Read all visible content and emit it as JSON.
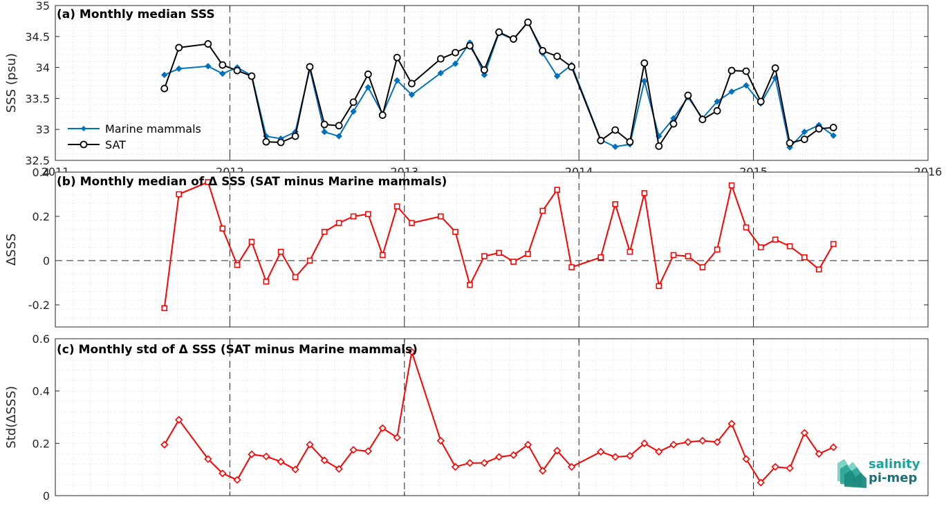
{
  "chart_data": [
    {
      "type": "line",
      "title": "(a) Monthly median SSS",
      "ylabel": "SSS (psu)",
      "xlim": [
        2011,
        2016
      ],
      "ylim": [
        32.5,
        35
      ],
      "yticks": [
        "32.5",
        "33",
        "33.5",
        "34",
        "34.5",
        "35"
      ],
      "xticks": [
        "2011",
        "2012",
        "2013",
        "2014",
        "2015",
        "2016"
      ],
      "grid": "on",
      "legend": "left",
      "series": [
        {
          "name": "Marine mammals",
          "color": "#0072BD",
          "marker": "diamond",
          "x": [
            2011.625,
            2011.708,
            2011.875,
            2011.958,
            2012.042,
            2012.125,
            2012.208,
            2012.292,
            2012.375,
            2012.458,
            2012.542,
            2012.625,
            2012.708,
            2012.792,
            2012.875,
            2012.958,
            2013.042,
            2013.208,
            2013.292,
            2013.375,
            2013.458,
            2013.542,
            2013.625,
            2013.708,
            2013.792,
            2013.875,
            2013.958,
            2014.125,
            2014.208,
            2014.292,
            2014.375,
            2014.458,
            2014.542,
            2014.625,
            2014.708,
            2014.792,
            2014.875,
            2014.958,
            2015.042,
            2015.125,
            2015.208,
            2015.292,
            2015.375,
            2015.458
          ],
          "y": [
            33.88,
            33.98,
            34.02,
            33.9,
            34.0,
            33.87,
            32.89,
            32.85,
            32.96,
            33.98,
            32.96,
            32.89,
            33.29,
            33.68,
            33.25,
            33.79,
            33.56,
            33.91,
            34.06,
            34.4,
            33.88,
            34.56,
            34.45,
            34.74,
            34.23,
            33.86,
            34.04,
            32.83,
            32.72,
            32.76,
            33.78,
            32.89,
            33.18,
            33.52,
            33.18,
            33.45,
            33.61,
            33.71,
            33.42,
            33.83,
            32.71,
            32.96,
            33.07,
            32.9
          ]
        },
        {
          "name": "SAT",
          "color": "#000000",
          "marker": "circle",
          "x": [
            2011.625,
            2011.708,
            2011.875,
            2011.958,
            2012.042,
            2012.125,
            2012.208,
            2012.292,
            2012.375,
            2012.458,
            2012.542,
            2012.625,
            2012.708,
            2012.792,
            2012.875,
            2012.958,
            2013.042,
            2013.208,
            2013.292,
            2013.375,
            2013.458,
            2013.542,
            2013.625,
            2013.708,
            2013.792,
            2013.875,
            2013.958,
            2014.125,
            2014.208,
            2014.292,
            2014.375,
            2014.458,
            2014.542,
            2014.625,
            2014.708,
            2014.792,
            2014.875,
            2014.958,
            2015.042,
            2015.125,
            2015.208,
            2015.292,
            2015.375,
            2015.458
          ],
          "y": [
            33.66,
            34.32,
            34.38,
            34.04,
            33.95,
            33.86,
            32.8,
            32.79,
            32.89,
            34.01,
            33.08,
            33.06,
            33.44,
            33.89,
            33.23,
            34.16,
            33.74,
            34.14,
            34.24,
            34.35,
            33.96,
            34.57,
            34.46,
            34.73,
            34.27,
            34.18,
            34.01,
            32.82,
            32.99,
            32.8,
            34.07,
            32.73,
            33.09,
            33.55,
            33.16,
            33.3,
            33.95,
            33.94,
            33.45,
            33.99,
            32.78,
            32.84,
            33.01,
            33.03
          ]
        }
      ]
    },
    {
      "type": "line",
      "title": "(b) Monthly median of Δ SSS (SAT minus Marine mammals)",
      "ylabel": "ΔSSS",
      "xlim": [
        2011,
        2016
      ],
      "ylim": [
        -0.3,
        0.4
      ],
      "yticks": [
        "-0.2",
        "0",
        "0.2",
        "0.4"
      ],
      "grid": "on",
      "zero_line": true,
      "series": [
        {
          "color": "#FF0000",
          "marker": "square",
          "x": [
            2011.625,
            2011.708,
            2011.875,
            2011.958,
            2012.042,
            2012.125,
            2012.208,
            2012.292,
            2012.375,
            2012.458,
            2012.542,
            2012.625,
            2012.708,
            2012.792,
            2012.875,
            2012.958,
            2013.042,
            2013.208,
            2013.292,
            2013.375,
            2013.458,
            2013.542,
            2013.625,
            2013.708,
            2013.792,
            2013.875,
            2013.958,
            2014.125,
            2014.208,
            2014.292,
            2014.375,
            2014.458,
            2014.542,
            2014.625,
            2014.708,
            2014.792,
            2014.875,
            2014.958,
            2015.042,
            2015.125,
            2015.208,
            2015.292,
            2015.375,
            2015.458
          ],
          "y": [
            -0.215,
            0.3,
            0.355,
            0.145,
            -0.02,
            0.085,
            -0.095,
            0.04,
            -0.075,
            0.0,
            0.13,
            0.17,
            0.2,
            0.21,
            0.025,
            0.245,
            0.17,
            0.2,
            0.13,
            -0.11,
            0.02,
            0.035,
            -0.005,
            0.03,
            0.225,
            0.32,
            -0.03,
            0.015,
            0.255,
            0.04,
            0.305,
            -0.115,
            0.025,
            0.02,
            -0.03,
            0.05,
            0.34,
            0.15,
            0.06,
            0.095,
            0.065,
            0.015,
            -0.04,
            0.075
          ]
        }
      ]
    },
    {
      "type": "line",
      "title": "(c) Monthly std of Δ SSS (SAT minus Marine mammals)",
      "ylabel": "Std(ΔSSS)",
      "xlim": [
        2011,
        2016
      ],
      "ylim": [
        0,
        0.6
      ],
      "yticks": [
        "0",
        "0.2",
        "0.4",
        "0.6"
      ],
      "grid": "on",
      "series": [
        {
          "color": "#FF0000",
          "marker": "diamond",
          "x": [
            2011.625,
            2011.708,
            2011.875,
            2011.958,
            2012.042,
            2012.125,
            2012.208,
            2012.292,
            2012.375,
            2012.458,
            2012.542,
            2012.625,
            2012.708,
            2012.792,
            2012.875,
            2012.958,
            2013.042,
            2013.208,
            2013.292,
            2013.375,
            2013.458,
            2013.542,
            2013.625,
            2013.708,
            2013.792,
            2013.875,
            2013.958,
            2014.125,
            2014.208,
            2014.292,
            2014.375,
            2014.458,
            2014.542,
            2014.625,
            2014.708,
            2014.792,
            2014.875,
            2014.958,
            2015.042,
            2015.125,
            2015.208,
            2015.292,
            2015.375,
            2015.458
          ],
          "y": [
            0.195,
            0.29,
            0.14,
            0.085,
            0.06,
            0.158,
            0.15,
            0.13,
            0.1,
            0.195,
            0.135,
            0.102,
            0.175,
            0.17,
            0.258,
            0.222,
            0.55,
            0.21,
            0.11,
            0.125,
            0.125,
            0.148,
            0.155,
            0.195,
            0.095,
            0.172,
            0.11,
            0.168,
            0.148,
            0.152,
            0.2,
            0.168,
            0.195,
            0.205,
            0.21,
            0.205,
            0.275,
            0.14,
            0.05,
            0.11,
            0.105,
            0.24,
            0.16,
            0.185
          ]
        }
      ]
    }
  ],
  "logo": {
    "line1": "salinity",
    "line2": "pi-mep",
    "color": "#1aa39a"
  }
}
